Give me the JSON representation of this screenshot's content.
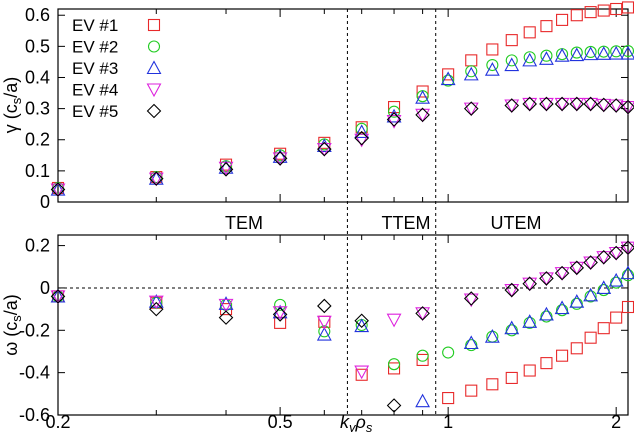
{
  "chart_data": [
    {
      "type": "scatter",
      "panel": "growth-rate",
      "ylabel": "γ (c_s/a)",
      "x_scale": "log",
      "xlim": [
        0.2,
        2.1
      ],
      "ylim": [
        0,
        0.62
      ],
      "yticks": [
        "0",
        "0.1",
        "0.2",
        "0.3",
        "0.4",
        "0.5",
        "0.6"
      ],
      "series": [
        {
          "name": "EV #1",
          "marker": "square",
          "color": "#e8292a",
          "points": [
            [
              0.2,
              0.045
            ],
            [
              0.3,
              0.08
            ],
            [
              0.4,
              0.12
            ],
            [
              0.5,
              0.155
            ],
            [
              0.6,
              0.19
            ],
            [
              0.7,
              0.24
            ],
            [
              0.8,
              0.305
            ],
            [
              0.9,
              0.355
            ],
            [
              1.0,
              0.41
            ],
            [
              1.1,
              0.455
            ],
            [
              1.2,
              0.49
            ],
            [
              1.3,
              0.52
            ],
            [
              1.4,
              0.545
            ],
            [
              1.5,
              0.565
            ],
            [
              1.6,
              0.585
            ],
            [
              1.7,
              0.6
            ],
            [
              1.8,
              0.61
            ],
            [
              1.9,
              0.615
            ],
            [
              2.0,
              0.62
            ],
            [
              2.1,
              0.625
            ]
          ]
        },
        {
          "name": "EV #2",
          "marker": "circle",
          "color": "#22cc22",
          "points": [
            [
              0.2,
              0.045
            ],
            [
              0.3,
              0.08
            ],
            [
              0.4,
              0.115
            ],
            [
              0.5,
              0.15
            ],
            [
              0.6,
              0.185
            ],
            [
              0.7,
              0.235
            ],
            [
              0.8,
              0.29
            ],
            [
              0.9,
              0.34
            ],
            [
              1.0,
              0.39
            ],
            [
              1.1,
              0.42
            ],
            [
              1.2,
              0.44
            ],
            [
              1.3,
              0.455
            ],
            [
              1.4,
              0.465
            ],
            [
              1.5,
              0.47
            ],
            [
              1.6,
              0.475
            ],
            [
              1.7,
              0.48
            ],
            [
              1.8,
              0.482
            ],
            [
              1.9,
              0.483
            ],
            [
              2.0,
              0.484
            ],
            [
              2.1,
              0.485
            ]
          ]
        },
        {
          "name": "EV #3",
          "marker": "triangle-up",
          "color": "#2233dd",
          "points": [
            [
              0.2,
              0.04
            ],
            [
              0.3,
              0.075
            ],
            [
              0.4,
              0.11
            ],
            [
              0.5,
              0.145
            ],
            [
              0.6,
              0.18
            ],
            [
              0.7,
              0.225
            ],
            [
              0.8,
              0.275
            ],
            [
              0.9,
              0.335
            ],
            [
              1.0,
              0.395
            ],
            [
              1.1,
              0.41
            ],
            [
              1.2,
              0.425
            ],
            [
              1.3,
              0.44
            ],
            [
              1.4,
              0.455
            ],
            [
              1.5,
              0.46
            ],
            [
              1.6,
              0.47
            ],
            [
              1.7,
              0.472
            ],
            [
              1.8,
              0.475
            ],
            [
              1.9,
              0.476
            ],
            [
              2.0,
              0.477
            ],
            [
              2.1,
              0.477
            ]
          ]
        },
        {
          "name": "EV #4",
          "marker": "triangle-down",
          "color": "#dd22dd",
          "points": [
            [
              0.2,
              0.04
            ],
            [
              0.3,
              0.075
            ],
            [
              0.4,
              0.11
            ],
            [
              0.5,
              0.14
            ],
            [
              0.6,
              0.17
            ],
            [
              0.7,
              0.2
            ],
            [
              0.8,
              0.26
            ],
            [
              0.9,
              0.28
            ],
            [
              1.1,
              0.3
            ],
            [
              1.3,
              0.31
            ],
            [
              1.4,
              0.315
            ],
            [
              1.5,
              0.315
            ],
            [
              1.6,
              0.315
            ],
            [
              1.7,
              0.315
            ],
            [
              1.8,
              0.315
            ],
            [
              1.9,
              0.312
            ],
            [
              2.0,
              0.31
            ],
            [
              2.1,
              0.305
            ]
          ]
        },
        {
          "name": "EV #5",
          "marker": "diamond",
          "color": "#000000",
          "points": [
            [
              0.2,
              0.04
            ],
            [
              0.3,
              0.075
            ],
            [
              0.4,
              0.105
            ],
            [
              0.5,
              0.14
            ],
            [
              0.6,
              0.17
            ],
            [
              0.7,
              0.205
            ],
            [
              0.8,
              0.265
            ],
            [
              0.9,
              0.28
            ],
            [
              1.1,
              0.3
            ],
            [
              1.3,
              0.31
            ],
            [
              1.4,
              0.315
            ],
            [
              1.5,
              0.315
            ],
            [
              1.6,
              0.315
            ],
            [
              1.7,
              0.315
            ],
            [
              1.8,
              0.315
            ],
            [
              1.9,
              0.312
            ],
            [
              2.0,
              0.31
            ],
            [
              2.1,
              0.305
            ]
          ]
        }
      ]
    },
    {
      "type": "scatter",
      "panel": "frequency",
      "ylabel": "ω (c_s/a)",
      "xlabel": "k_y ρ_s",
      "x_scale": "log",
      "xlim": [
        0.2,
        2.1
      ],
      "ylim": [
        -0.6,
        0.25
      ],
      "xticks": [
        "0.2",
        "0.5",
        "1",
        "2"
      ],
      "yticks": [
        "-0.6",
        "-0.4",
        "-0.2",
        "0",
        "0.2"
      ],
      "series": [
        {
          "name": "EV #1",
          "points": [
            [
              0.2,
              -0.04
            ],
            [
              0.3,
              -0.07
            ],
            [
              0.4,
              -0.1
            ],
            [
              0.5,
              -0.165
            ],
            [
              0.6,
              -0.16
            ],
            [
              0.7,
              -0.41
            ],
            [
              0.8,
              -0.38
            ],
            [
              0.9,
              -0.34
            ],
            [
              1.0,
              -0.52
            ],
            [
              1.1,
              -0.485
            ],
            [
              1.2,
              -0.455
            ],
            [
              1.3,
              -0.425
            ],
            [
              1.4,
              -0.39
            ],
            [
              1.5,
              -0.355
            ],
            [
              1.6,
              -0.32
            ],
            [
              1.7,
              -0.285
            ],
            [
              1.8,
              -0.235
            ],
            [
              1.9,
              -0.19
            ],
            [
              2.0,
              -0.14
            ],
            [
              2.1,
              -0.09
            ]
          ]
        },
        {
          "name": "EV #2",
          "points": [
            [
              0.2,
              -0.04
            ],
            [
              0.3,
              -0.07
            ],
            [
              0.4,
              -0.08
            ],
            [
              0.5,
              -0.08
            ],
            [
              0.6,
              -0.205
            ],
            [
              0.7,
              -0.175
            ],
            [
              0.8,
              -0.36
            ],
            [
              0.9,
              -0.32
            ],
            [
              1.0,
              -0.305
            ],
            [
              1.1,
              -0.27
            ],
            [
              1.2,
              -0.23
            ],
            [
              1.3,
              -0.2
            ],
            [
              1.4,
              -0.165
            ],
            [
              1.5,
              -0.135
            ],
            [
              1.6,
              -0.105
            ],
            [
              1.7,
              -0.075
            ],
            [
              1.8,
              -0.04
            ],
            [
              1.9,
              -0.01
            ],
            [
              2.0,
              0.025
            ],
            [
              2.1,
              0.06
            ]
          ]
        },
        {
          "name": "EV #3",
          "points": [
            [
              0.2,
              -0.04
            ],
            [
              0.3,
              -0.065
            ],
            [
              0.4,
              -0.075
            ],
            [
              0.5,
              -0.115
            ],
            [
              0.6,
              -0.22
            ],
            [
              0.7,
              -0.18
            ],
            [
              0.9,
              -0.535
            ],
            [
              1.1,
              -0.26
            ],
            [
              1.2,
              -0.23
            ],
            [
              1.3,
              -0.19
            ],
            [
              1.4,
              -0.16
            ],
            [
              1.5,
              -0.125
            ],
            [
              1.6,
              -0.095
            ],
            [
              1.7,
              -0.065
            ],
            [
              1.8,
              -0.035
            ],
            [
              1.9,
              0.0
            ],
            [
              2.0,
              0.035
            ],
            [
              2.1,
              0.07
            ]
          ]
        },
        {
          "name": "EV #4",
          "points": [
            [
              0.2,
              -0.04
            ],
            [
              0.3,
              -0.065
            ],
            [
              0.4,
              -0.08
            ],
            [
              0.5,
              -0.115
            ],
            [
              0.6,
              -0.16
            ],
            [
              0.7,
              -0.395
            ],
            [
              0.8,
              -0.15
            ],
            [
              0.9,
              -0.12
            ],
            [
              1.1,
              -0.055
            ],
            [
              1.3,
              -0.01
            ],
            [
              1.4,
              0.02
            ],
            [
              1.5,
              0.045
            ],
            [
              1.6,
              0.07
            ],
            [
              1.7,
              0.095
            ],
            [
              1.8,
              0.12
            ],
            [
              1.9,
              0.145
            ],
            [
              2.0,
              0.165
            ],
            [
              2.1,
              0.19
            ]
          ]
        },
        {
          "name": "EV #5",
          "points": [
            [
              0.2,
              -0.04
            ],
            [
              0.3,
              -0.1
            ],
            [
              0.4,
              -0.14
            ],
            [
              0.5,
              -0.125
            ],
            [
              0.6,
              -0.085
            ],
            [
              0.7,
              -0.155
            ],
            [
              0.8,
              -0.555
            ],
            [
              0.9,
              -0.12
            ],
            [
              1.1,
              -0.05
            ],
            [
              1.3,
              -0.01
            ],
            [
              1.4,
              0.02
            ],
            [
              1.5,
              0.045
            ],
            [
              1.6,
              0.07
            ],
            [
              1.7,
              0.095
            ],
            [
              1.8,
              0.12
            ],
            [
              1.9,
              0.145
            ],
            [
              2.0,
              0.165
            ],
            [
              2.1,
              0.19
            ]
          ]
        }
      ]
    }
  ],
  "regions": [
    "TEM",
    "TTEM",
    "UTEM"
  ],
  "region_bounds": [
    0.66,
    0.95
  ]
}
